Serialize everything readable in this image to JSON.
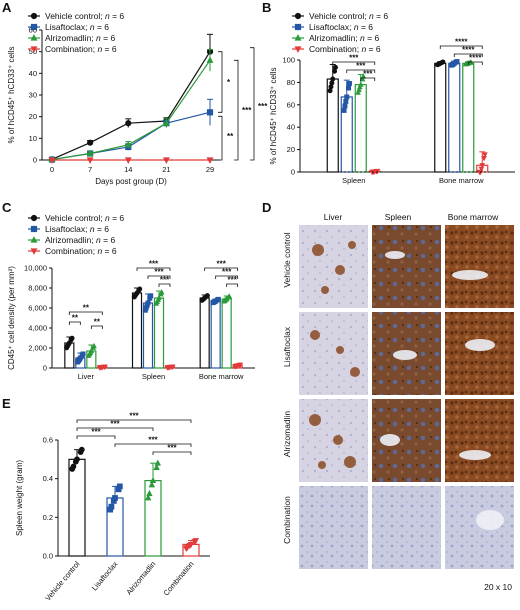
{
  "colors": {
    "vehicle": "#111111",
    "lisaftoclax": "#2457a6",
    "alrizomadlin": "#2a9a3a",
    "combination": "#e23a3a"
  },
  "panel_letters": [
    "A",
    "B",
    "C",
    "D",
    "E"
  ],
  "chart_data": [
    {
      "panel": "A",
      "type": "line",
      "ylabel": "% of hCD45⁺ hCD33⁺ cells",
      "xlabel": "Days post group (D)",
      "x": [
        0,
        7,
        14,
        21,
        29
      ],
      "ylim": [
        0,
        60
      ],
      "yticks": [
        0,
        10,
        20,
        30,
        40,
        50,
        60
      ],
      "legend": [
        "Vehicle control; n = 6",
        "Lisaftoclax; n = 6",
        "Alrizomadlin; n = 6",
        "Combination; n = 6"
      ],
      "series": [
        {
          "name": "Vehicle control; n = 6",
          "values": [
            0.3,
            8,
            17,
            18,
            50
          ],
          "err": [
            0.3,
            1,
            2,
            1.5,
            8
          ]
        },
        {
          "name": "Lisaftoclax; n = 6",
          "values": [
            0.2,
            3,
            6,
            17,
            22
          ],
          "err": [
            0.2,
            0.8,
            1.5,
            2,
            6
          ]
        },
        {
          "name": "Alrizomadlin; n = 6",
          "values": [
            0.2,
            3,
            7,
            17,
            46
          ],
          "err": [
            0.2,
            0.8,
            1.5,
            2,
            5
          ]
        },
        {
          "name": "Combination; n = 6",
          "values": [
            0,
            0,
            0,
            0,
            0
          ],
          "err": [
            0,
            0,
            0,
            0,
            0
          ]
        }
      ],
      "significance": [
        "*",
        "**",
        "***",
        "***"
      ]
    },
    {
      "panel": "B",
      "type": "bar",
      "ylabel": "% of hCD45⁺ hCD33⁺ cells",
      "categories": [
        "Spleen",
        "Bone marrow"
      ],
      "ylim": [
        0,
        100
      ],
      "yticks": [
        0,
        20,
        40,
        60,
        80,
        100
      ],
      "legend": [
        "Vehicle control; n = 6",
        "Lisaftoclax; n = 6",
        "Alrizomadlin; n = 6",
        "Combination; n = 6"
      ],
      "series": [
        {
          "name": "Vehicle control; n = 6",
          "values": [
            83,
            97
          ],
          "err": [
            13,
            1.5
          ]
        },
        {
          "name": "Lisaftoclax; n = 6",
          "values": [
            67,
            97
          ],
          "err": [
            15,
            2
          ]
        },
        {
          "name": "Alrizomadlin; n = 6",
          "values": [
            78,
            97
          ],
          "err": [
            9,
            1
          ]
        },
        {
          "name": "Combination; n = 6",
          "values": [
            0.5,
            6
          ],
          "err": [
            0.5,
            12
          ]
        }
      ],
      "significance": [
        "***",
        "***",
        "***",
        "****",
        "****",
        "****"
      ]
    },
    {
      "panel": "C",
      "type": "bar",
      "ylabel": "CD45⁺ cell density (per mm²)",
      "categories": [
        "Liver",
        "Spleen",
        "Bone marrow"
      ],
      "ylim": [
        0,
        10000
      ],
      "yticks": [
        "0",
        "2,000",
        "4,000",
        "6,000",
        "8,000",
        "10,000"
      ],
      "legend": [
        "Vehicle control; n = 6",
        "Lisaftoclax; n = 6",
        "Alrizomadlin; n = 6",
        "Combination; n = 6"
      ],
      "series": [
        {
          "name": "Vehicle control; n = 6",
          "values": [
            2500,
            7500,
            7000
          ],
          "err": [
            600,
            500,
            300
          ]
        },
        {
          "name": "Lisaftoclax; n = 6",
          "values": [
            1000,
            6500,
            6700
          ],
          "err": [
            500,
            900,
            200
          ]
        },
        {
          "name": "Alrizomadlin; n = 6",
          "values": [
            1700,
            7000,
            6900
          ],
          "err": [
            600,
            700,
            300
          ]
        },
        {
          "name": "Combination; n = 6",
          "values": [
            100,
            100,
            250
          ],
          "err": [
            50,
            50,
            100
          ]
        }
      ],
      "significance": [
        "**",
        "**",
        "**",
        "***",
        "***",
        "***",
        "***",
        "***",
        "***"
      ]
    },
    {
      "panel": "E",
      "type": "bar",
      "ylabel": "Spleen weight (gram)",
      "categories": [
        "Vehicle control",
        "Lisaftoclax",
        "Alrizomadlin",
        "Combination"
      ],
      "ylim": [
        0,
        0.6
      ],
      "yticks": [
        "0.0",
        "0.2",
        "0.4",
        "0.6"
      ],
      "values": [
        0.5,
        0.3,
        0.39,
        0.06
      ],
      "err": [
        0.05,
        0.06,
        0.09,
        0.02
      ],
      "significance": [
        "***",
        "***",
        "***",
        "***",
        "***"
      ]
    }
  ],
  "ihc": {
    "columns": [
      "Liver",
      "Spleen",
      "Bone marrow"
    ],
    "rows": [
      "Vehicle control",
      "Lisaftoclax",
      "Alrizomadlin",
      "Combination"
    ],
    "magnification": "20 x 10"
  }
}
